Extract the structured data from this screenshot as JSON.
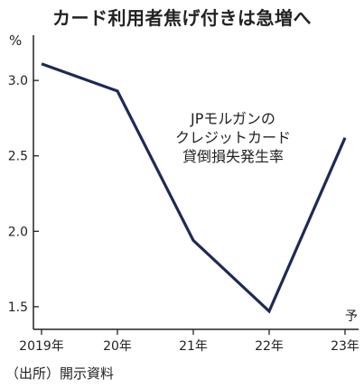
{
  "chart_data": {
    "type": "line",
    "title": "カード利用者焦げ付きは急増へ",
    "ylabel": "%",
    "x": [
      "2019年",
      "20年",
      "21年",
      "22年",
      "23年"
    ],
    "series": [
      {
        "values": [
          3.11,
          2.93,
          1.94,
          1.47,
          2.62
        ]
      }
    ],
    "ylim": [
      1.35,
      3.3
    ],
    "yticks": [
      1.5,
      2.0,
      2.5,
      3.0
    ],
    "ytick_labels": [
      "1.5",
      "2.0",
      "2.5",
      "3.0"
    ],
    "annotation": [
      "JPモルガンの",
      "クレジットカード",
      "貸倒損失発生率"
    ],
    "forecast_label": "予",
    "grid": false,
    "line_color": "#1c2a57"
  },
  "source": "（出所）開示資料"
}
